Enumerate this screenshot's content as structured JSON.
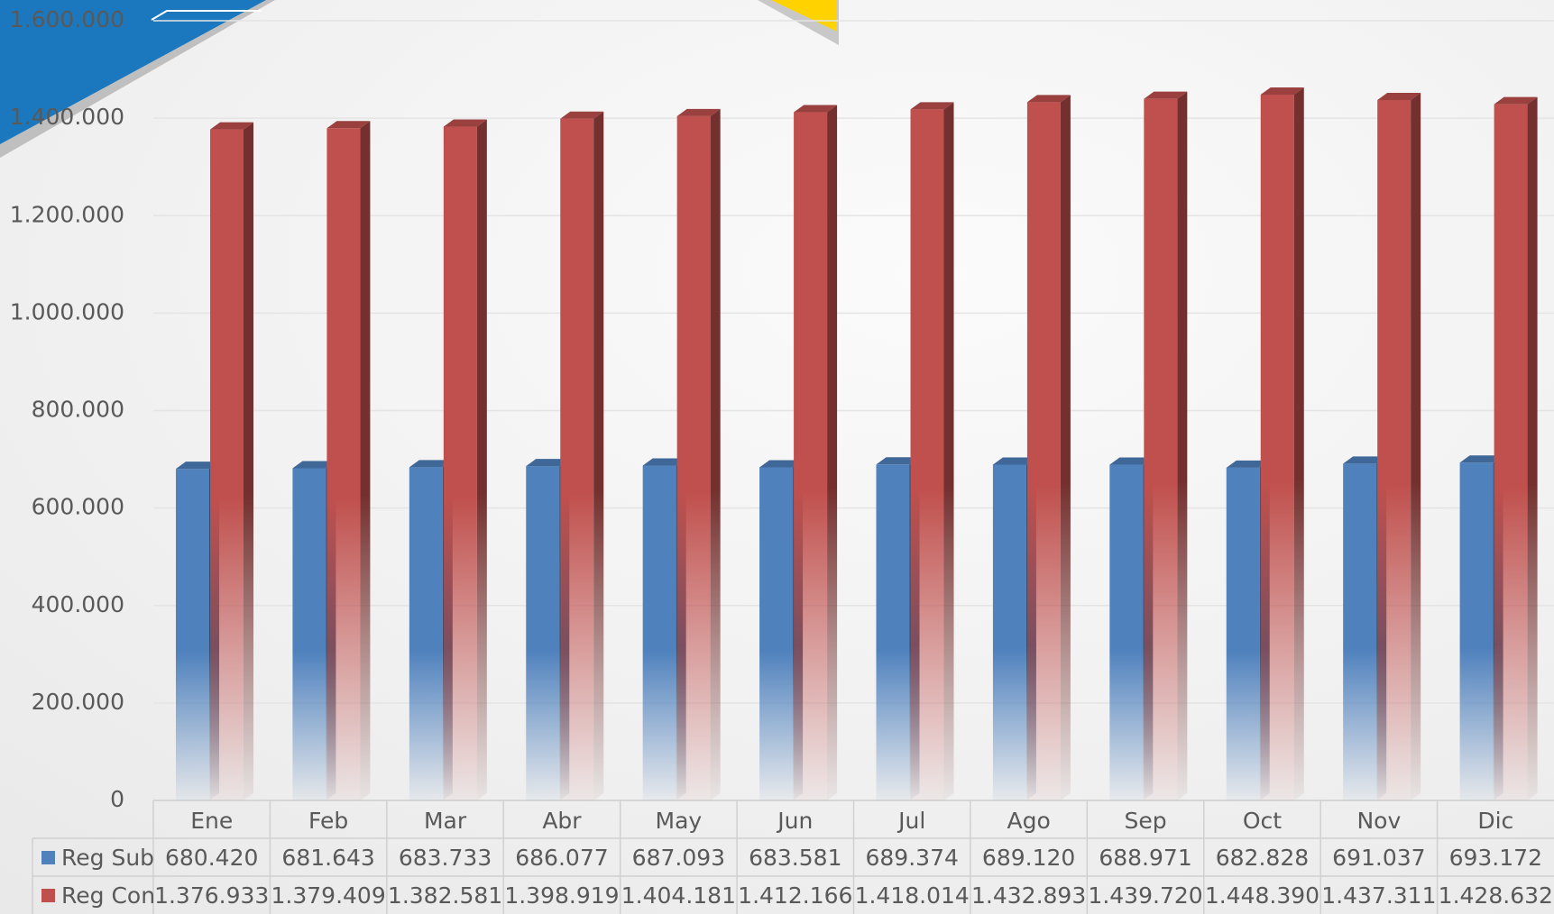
{
  "chart_data": {
    "type": "bar3d",
    "categories": [
      "Ene",
      "Feb",
      "Mar",
      "Abr",
      "May",
      "Jun",
      "Jul",
      "Ago",
      "Sep",
      "Oct",
      "Nov",
      "Dic"
    ],
    "series": [
      {
        "name": "Reg Sub",
        "color": "#4f81bd",
        "values": [
          680420,
          681643,
          683733,
          686077,
          687093,
          683581,
          689374,
          689120,
          688971,
          682828,
          691037,
          693172
        ],
        "value_labels": [
          "680.420",
          "681.643",
          "683.733",
          "686.077",
          "687.093",
          "683.581",
          "689.374",
          "689.120",
          "688.971",
          "682.828",
          "691.037",
          "693.172"
        ]
      },
      {
        "name": "Reg Con",
        "color": "#c0504d",
        "values": [
          1376933,
          1379409,
          1382581,
          1398919,
          1404181,
          1412166,
          1418014,
          1432893,
          1439720,
          1448390,
          1437311,
          1428632
        ],
        "value_labels": [
          "1.376.933",
          "1.379.409",
          "1.382.581",
          "1.398.919",
          "1.404.181",
          "1.412.166",
          "1.418.014",
          "1.432.893",
          "1.439.720",
          "1.448.390",
          "1.437.311",
          "1.428.632"
        ]
      }
    ],
    "ylim": [
      0,
      1600000
    ],
    "yticks": [
      {
        "value": 0,
        "label": "0"
      },
      {
        "value": 200000,
        "label": "200.000"
      },
      {
        "value": 400000,
        "label": "400.000"
      },
      {
        "value": 600000,
        "label": "600.000"
      },
      {
        "value": 800000,
        "label": "800.000"
      },
      {
        "value": 1000000,
        "label": "1.000.000"
      },
      {
        "value": 1200000,
        "label": "1.200.000"
      },
      {
        "value": 1400000,
        "label": "1.400.000"
      },
      {
        "value": 1600000,
        "label": "1.600.000"
      }
    ],
    "grid": true,
    "data_table": true
  }
}
